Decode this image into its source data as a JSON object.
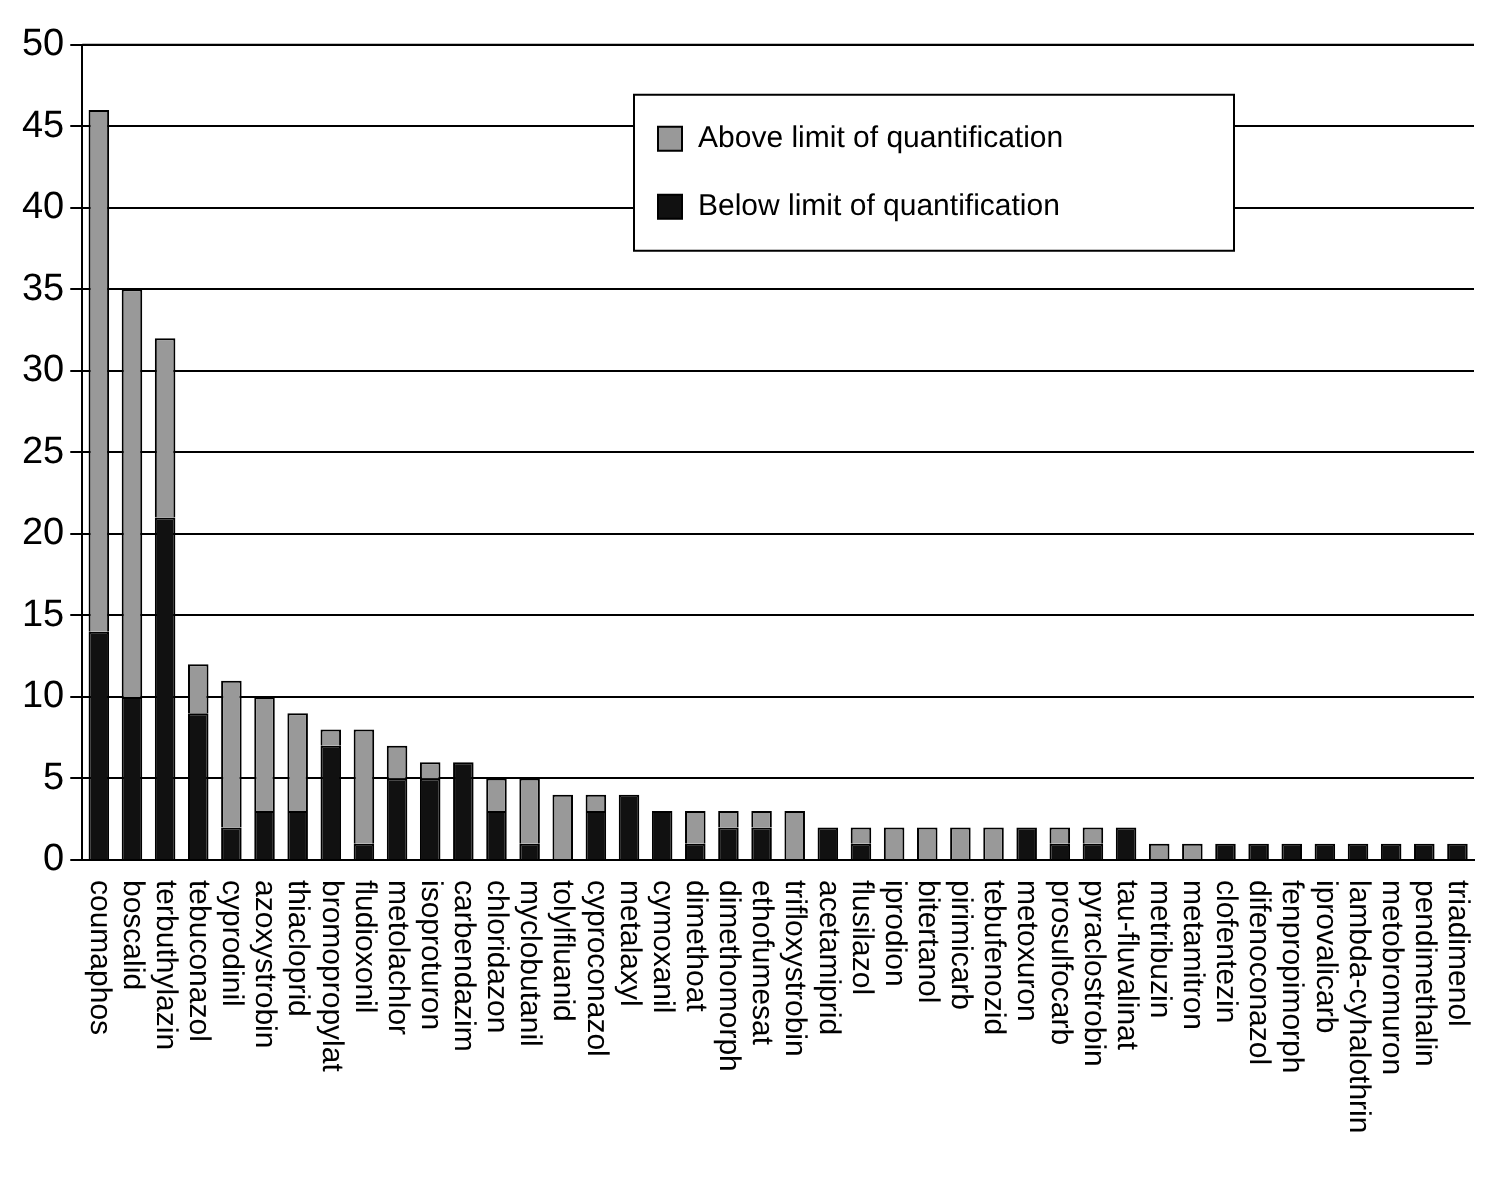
{
  "chart_data": {
    "type": "bar",
    "stacked": true,
    "categories": [
      "coumaphos",
      "boscalid",
      "terbuthylazin",
      "tebuconazol",
      "cyprodinil",
      "azoxystrobin",
      "thiacloprid",
      "bromopropylat",
      "fludioxonil",
      "metolachlor",
      "isoproturon",
      "carbendazim",
      "chloridazon",
      "myclobutanil",
      "tolylfluanid",
      "cyproconazol",
      "metalaxyl",
      "cymoxanil",
      "dimethoat",
      "dimethomorph",
      "ethofumesat",
      "trifloxystrobin",
      "acetamiprid",
      "flusilazol",
      "iprodion",
      "bitertanol",
      "pirimicarb",
      "tebufenozid",
      "metoxuron",
      "prosulfocarb",
      "pyraclostrobin",
      "tau-fluvalinat",
      "metribuzin",
      "metamitron",
      "clofentezin",
      "difenoconazol",
      "fenpropimorph",
      "iprovalicarb",
      "lambda-cyhalothrin",
      "metobromuron",
      "pendimethalin",
      "triadimenol"
    ],
    "series": [
      {
        "name": "Below limit of quantification",
        "color": "#111111",
        "values": [
          14,
          10,
          21,
          9,
          2,
          3,
          3,
          7,
          1,
          5,
          5,
          6,
          3,
          1,
          0,
          3,
          4,
          3,
          1,
          2,
          2,
          0,
          2,
          1,
          0,
          0,
          0,
          0,
          2,
          1,
          1,
          2,
          0,
          0,
          1,
          1,
          1,
          1,
          1,
          1,
          1,
          1
        ]
      },
      {
        "name": "Above limit of quantification",
        "color": "#999999",
        "values": [
          32,
          25,
          11,
          3,
          9,
          7,
          6,
          1,
          7,
          2,
          1,
          0,
          2,
          4,
          4,
          1,
          0,
          0,
          2,
          1,
          1,
          3,
          0,
          1,
          2,
          2,
          2,
          2,
          0,
          1,
          1,
          0,
          1,
          1,
          0,
          0,
          0,
          0,
          0,
          0,
          0,
          0
        ]
      }
    ],
    "ylim": [
      0,
      50
    ],
    "yticks": [
      0,
      5,
      10,
      15,
      20,
      25,
      30,
      35,
      40,
      45,
      50
    ],
    "grid": "y",
    "legend": "top right"
  }
}
